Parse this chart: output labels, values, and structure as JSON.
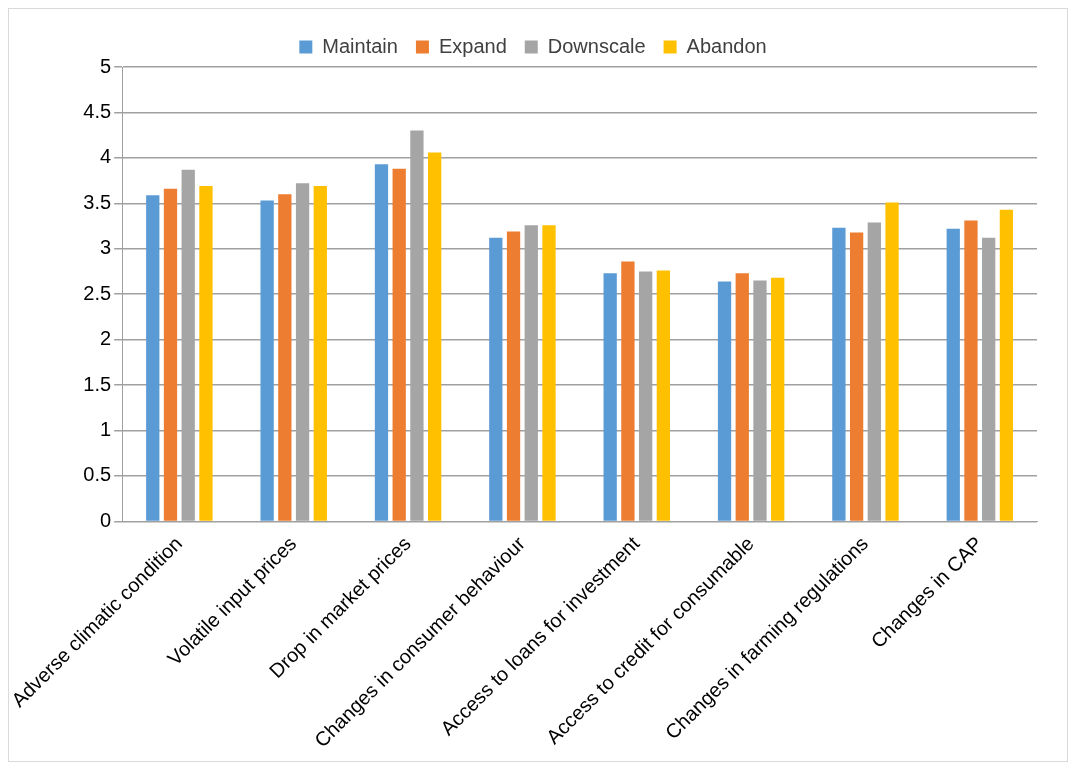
{
  "chart_data": {
    "type": "bar",
    "categories": [
      "Adverse climatic condition",
      "Volatile input prices",
      "Drop in market prices",
      "Changes in consumer behaviour",
      "Access to loans for investment",
      "Access to credit for consumable",
      "Changes in farming regulations",
      "Changes in CAP"
    ],
    "series": [
      {
        "name": "Maintain",
        "color": "#5b9bd5",
        "values": [
          3.59,
          3.53,
          3.93,
          3.12,
          2.73,
          2.64,
          3.23,
          3.22
        ]
      },
      {
        "name": "Expand",
        "color": "#ed7d31",
        "values": [
          3.66,
          3.6,
          3.88,
          3.19,
          2.86,
          2.73,
          3.18,
          3.31
        ]
      },
      {
        "name": "Downscale",
        "color": "#a5a5a5",
        "values": [
          3.87,
          3.72,
          4.3,
          3.26,
          2.75,
          2.65,
          3.29,
          3.12
        ]
      },
      {
        "name": "Abandon",
        "color": "#ffc000",
        "values": [
          3.69,
          3.69,
          4.06,
          3.26,
          2.76,
          2.68,
          3.51,
          3.43
        ]
      }
    ],
    "ylim": [
      0,
      5
    ],
    "yticks": [
      0,
      0.5,
      1,
      1.5,
      2,
      2.5,
      3,
      3.5,
      4,
      4.5,
      5
    ],
    "grid": "y",
    "legend": "top"
  }
}
